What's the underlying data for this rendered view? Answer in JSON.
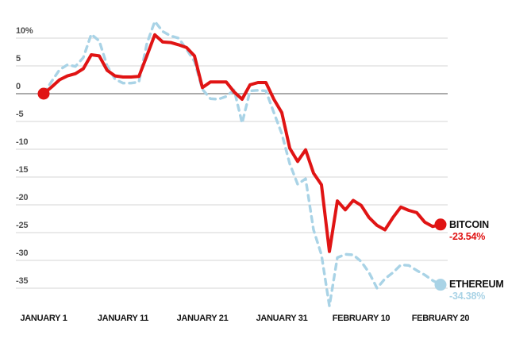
{
  "chart_data": {
    "type": "line",
    "title": "",
    "x_axis": {
      "ticks": [
        {
          "label": "JANUARY 1",
          "day": 0
        },
        {
          "label": "JANUARY 11",
          "day": 10
        },
        {
          "label": "JANUARY 21",
          "day": 20
        },
        {
          "label": "JANUARY 31",
          "day": 30
        },
        {
          "label": "FEBRUARY 10",
          "day": 40
        },
        {
          "label": "FEBRUARY 20",
          "day": 50
        }
      ]
    },
    "y_axis": {
      "unit": "%",
      "ticks": [
        {
          "label": "10%",
          "value": 10
        },
        {
          "label": "5",
          "value": 5
        },
        {
          "label": "0",
          "value": 0
        },
        {
          "label": "-5",
          "value": -5
        },
        {
          "label": "-10",
          "value": -10
        },
        {
          "label": "-15",
          "value": -15
        },
        {
          "label": "-20",
          "value": -20
        },
        {
          "label": "-25",
          "value": -25
        },
        {
          "label": "-30",
          "value": -30
        },
        {
          "label": "-35",
          "value": -35
        }
      ],
      "ylim": [
        -39,
        14
      ]
    },
    "series": [
      {
        "id": "bitcoin",
        "name": "BITCOIN",
        "final_label": "-23.54%",
        "final_value": -23.54,
        "color": "#e01414",
        "style": "solid",
        "start_dot": true,
        "values": [
          0,
          1.2,
          2.5,
          3.2,
          3.6,
          4.5,
          7.0,
          6.8,
          4.2,
          3.2,
          3.0,
          3.0,
          3.1,
          6.8,
          10.6,
          9.3,
          9.2,
          8.8,
          8.3,
          6.8,
          1.1,
          2.1,
          2.1,
          2.1,
          0.3,
          -1.0,
          1.6,
          2.0,
          2.0,
          -1.0,
          -3.4,
          -9.8,
          -12.2,
          -10.1,
          -14.3,
          -16.4,
          -28.4,
          -19.3,
          -20.9,
          -19.2,
          -20.1,
          -22.3,
          -23.7,
          -24.5,
          -22.3,
          -20.4,
          -21.0,
          -21.4,
          -23.1,
          -23.9,
          -23.54
        ]
      },
      {
        "id": "ethereum",
        "name": "ETHEREUM",
        "final_label": "-34.38%",
        "final_value": -34.38,
        "color": "#a9d3e6",
        "style": "dashed",
        "start_dot": false,
        "values": [
          0,
          2.2,
          4.3,
          5.2,
          4.9,
          6.5,
          10.7,
          9.5,
          5.0,
          2.6,
          1.9,
          1.9,
          2.1,
          9.0,
          13.0,
          11.2,
          10.4,
          10.0,
          8.0,
          5.8,
          0.8,
          -0.9,
          -1.0,
          -0.5,
          0.7,
          -5.3,
          0.5,
          0.6,
          0.5,
          -3.4,
          -7.2,
          -12.6,
          -16.3,
          -15.3,
          -24.5,
          -29.0,
          -38.2,
          -29.5,
          -28.9,
          -29.0,
          -30.2,
          -32.2,
          -35.0,
          -33.3,
          -32.2,
          -30.8,
          -30.9,
          -31.8,
          -32.6,
          -33.6,
          -34.38
        ]
      }
    ],
    "colors": {
      "grid": "#d6d6d6",
      "zero_line": "#8f8f8f",
      "background": "#ffffff"
    },
    "grid": "horizontal-only",
    "legend_position": "right-of-line-ends"
  }
}
